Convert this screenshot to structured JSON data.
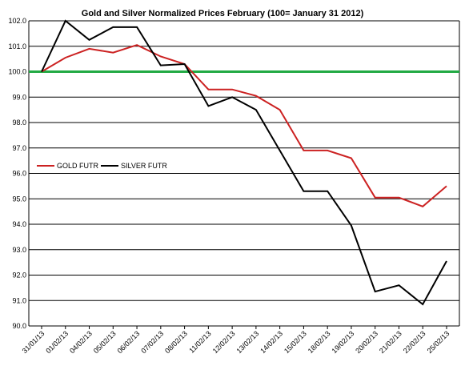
{
  "chart_data": {
    "type": "line",
    "title": "Gold and Silver Normalized Prices February  (100= January 31 2012)",
    "xlabel": "",
    "ylabel": "",
    "ylim": [
      90.0,
      102.0
    ],
    "yticks": [
      "102.0",
      "101.0",
      "100.0",
      "99.0",
      "98.0",
      "97.0",
      "96.0",
      "95.0",
      "94.0",
      "93.0",
      "92.0",
      "91.0",
      "90.0"
    ],
    "categories": [
      "31/01/13",
      "01/02/13",
      "04/02/13",
      "05/02/13",
      "06/02/13",
      "07/02/13",
      "08/02/13",
      "11/02/13",
      "12/02/13",
      "13/02/13",
      "14/02/13",
      "15/02/13",
      "18/02/13",
      "19/02/13",
      "20/02/13",
      "21/02/13",
      "22/02/13",
      "25/02/13"
    ],
    "reference_line": {
      "value": 100.0,
      "color": "#22aa44"
    },
    "grid": true,
    "legend_position": "middle-left",
    "series": [
      {
        "name": "GOLD  FUTR",
        "color": "#cc2222",
        "values": [
          100.0,
          100.55,
          100.9,
          100.75,
          101.05,
          100.6,
          100.3,
          99.3,
          99.3,
          99.05,
          98.5,
          96.9,
          96.9,
          96.6,
          95.05,
          95.05,
          94.7,
          95.5
        ]
      },
      {
        "name": "SILVER  FUTR",
        "color": "#000000",
        "values": [
          100.0,
          102.0,
          101.25,
          101.75,
          101.75,
          100.25,
          100.3,
          98.65,
          99.0,
          98.5,
          96.9,
          95.3,
          95.3,
          93.95,
          91.35,
          91.6,
          90.85,
          92.55
        ]
      }
    ]
  }
}
